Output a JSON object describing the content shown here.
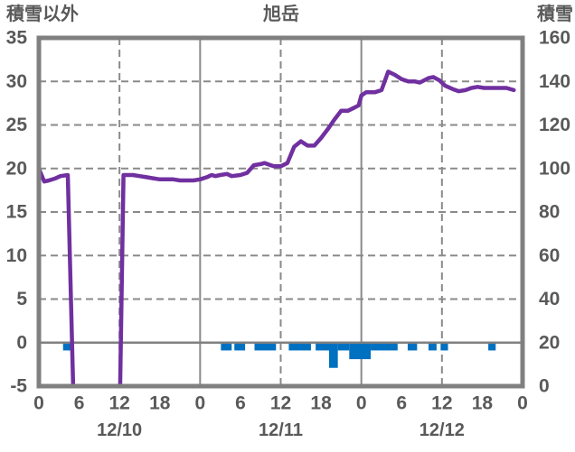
{
  "page": {
    "background": "#FFFFFF"
  },
  "colors": {
    "line": "#7030A0",
    "bar": "#0070C0",
    "grid": "#8A8A8A",
    "zero_line": "#808080",
    "border": "#808080",
    "text": "#595959",
    "background": "#FFFFFF"
  },
  "chart_data": {
    "type": "line+bar",
    "title": "旭岳",
    "left_axis": {
      "title": "積雪以外",
      "min": -5,
      "max": 35,
      "tick_step": 5,
      "ticks": [
        35,
        30,
        25,
        20,
        15,
        10,
        5,
        0,
        -5
      ]
    },
    "right_axis": {
      "title": "積雪",
      "min": 0,
      "max": 160,
      "tick_step": 20,
      "ticks": [
        160,
        140,
        120,
        100,
        80,
        60,
        40,
        20,
        0
      ]
    },
    "x_axis": {
      "unit": "hour",
      "min": 0,
      "max": 72,
      "tick_interval": 6,
      "tick_labels": [
        "0",
        "6",
        "12",
        "18",
        "0",
        "6",
        "12",
        "18",
        "0",
        "6",
        "12",
        "18",
        "0"
      ],
      "day_labels": [
        {
          "text": "12/10",
          "hour": 12
        },
        {
          "text": "12/11",
          "hour": 36
        },
        {
          "text": "12/12",
          "hour": 60
        }
      ],
      "solid_gridline_hours": [
        24,
        48
      ],
      "dashed_gridline_hours": [
        12,
        36,
        60
      ]
    },
    "series": [
      {
        "name": "積雪",
        "kind": "line",
        "axis": "right",
        "color": "#7030A0",
        "points": [
          [
            0,
            100
          ],
          [
            0.8,
            94
          ],
          [
            1.5,
            94.5
          ],
          [
            2.5,
            95.5
          ],
          [
            3.2,
            96.5
          ],
          [
            4.3,
            97
          ],
          [
            5.1,
            0
          ],
          [
            12.1,
            0
          ],
          [
            12.6,
            97
          ],
          [
            14,
            97
          ],
          [
            15,
            96.5
          ],
          [
            16,
            96
          ],
          [
            17,
            95.5
          ],
          [
            18,
            95
          ],
          [
            20,
            95
          ],
          [
            21,
            94.5
          ],
          [
            23,
            94.5
          ],
          [
            24,
            95
          ],
          [
            25,
            96
          ],
          [
            25.7,
            97
          ],
          [
            26.3,
            96.5
          ],
          [
            27,
            97
          ],
          [
            28,
            97.5
          ],
          [
            28.7,
            96.5
          ],
          [
            30,
            97
          ],
          [
            31,
            98
          ],
          [
            32,
            101.5
          ],
          [
            33,
            102
          ],
          [
            33.6,
            102.5
          ],
          [
            34.5,
            101.5
          ],
          [
            35,
            101
          ],
          [
            36,
            101
          ],
          [
            37,
            102.5
          ],
          [
            38,
            110
          ],
          [
            39,
            112.5
          ],
          [
            40,
            110.5
          ],
          [
            41,
            110.5
          ],
          [
            42,
            114
          ],
          [
            43,
            118
          ],
          [
            44,
            122.5
          ],
          [
            45,
            126.5
          ],
          [
            46,
            126.5
          ],
          [
            47,
            128
          ],
          [
            47.6,
            129
          ],
          [
            48,
            133.5
          ],
          [
            48.7,
            135
          ],
          [
            50,
            135
          ],
          [
            51,
            136
          ],
          [
            52,
            144.5
          ],
          [
            53,
            143
          ],
          [
            54,
            141
          ],
          [
            55,
            140
          ],
          [
            56,
            140
          ],
          [
            56.7,
            139.5
          ],
          [
            58,
            141.5
          ],
          [
            58.7,
            142
          ],
          [
            59.6,
            140.5
          ],
          [
            60.5,
            138
          ],
          [
            61.6,
            136.5
          ],
          [
            62.5,
            135.5
          ],
          [
            63.5,
            136
          ],
          [
            64.4,
            137
          ],
          [
            65.3,
            137.5
          ],
          [
            66.3,
            137
          ],
          [
            68,
            137
          ],
          [
            69.6,
            137
          ],
          [
            70.7,
            136
          ]
        ]
      },
      {
        "name": "積雪以外",
        "kind": "bar",
        "axis": "left",
        "color": "#0070C0",
        "segments": [
          [
            3.6,
            4.7,
            -0.9
          ],
          [
            27.1,
            28.7,
            -0.9
          ],
          [
            29.1,
            30.7,
            -0.9
          ],
          [
            32.1,
            35.3,
            -0.9
          ],
          [
            37.2,
            40.5,
            -0.9
          ],
          [
            41.2,
            43.2,
            -0.9
          ],
          [
            43.2,
            44.5,
            -2.9
          ],
          [
            44.5,
            46.2,
            -0.9
          ],
          [
            46.2,
            49.4,
            -1.9
          ],
          [
            49.4,
            53.4,
            -0.9
          ],
          [
            54.9,
            56.3,
            -0.9
          ],
          [
            58.0,
            59.2,
            -0.9
          ],
          [
            59.8,
            60.9,
            -0.9
          ],
          [
            66.9,
            68.0,
            -0.9
          ]
        ]
      }
    ],
    "grid": {
      "horizontal_step": 5,
      "zero_line_value": 0,
      "legend": "none"
    }
  }
}
